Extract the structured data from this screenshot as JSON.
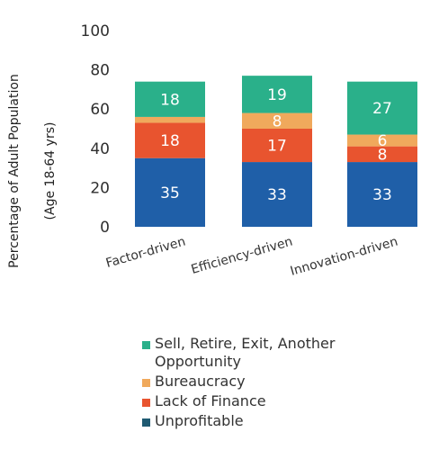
{
  "chart_data": {
    "type": "bar",
    "stacked": true,
    "title": "",
    "xlabel": "",
    "ylabel": [
      "Percentage of Adult Population",
      "(Age 18-64 yrs)"
    ],
    "ylim": [
      0,
      100
    ],
    "yticks": [
      0,
      20,
      40,
      60,
      80,
      100
    ],
    "grid": false,
    "legend_position": "bottom",
    "categories": [
      "Factor-driven",
      "Efficiency-driven",
      "Innovation-driven"
    ],
    "series": [
      {
        "name": "Unprofitable",
        "color": "#1f5fa8",
        "values": [
          35,
          33,
          33
        ],
        "labels": [
          "35",
          "33",
          "33"
        ]
      },
      {
        "name": "Lack of Finance",
        "color": "#e8542f",
        "values": [
          18,
          17,
          8
        ],
        "labels": [
          "18",
          "17",
          "8"
        ]
      },
      {
        "name": "Bureaucracy",
        "color": "#f0a95c",
        "values": [
          3,
          8,
          6
        ],
        "labels": [
          "",
          "8",
          "6"
        ]
      },
      {
        "name": "Sell, Retire, Exit, Another Opportunity",
        "color": "#2ab08a",
        "values": [
          18,
          19,
          27
        ],
        "labels": [
          "18",
          "19",
          "27"
        ]
      }
    ],
    "legend": [
      {
        "label": "Sell, Retire, Exit, Another Opportunity",
        "color": "#2ab08a",
        "icon": "square-icon"
      },
      {
        "label": "Bureaucracy",
        "color": "#f0a95c",
        "icon": "square-icon"
      },
      {
        "label": "Lack of Finance",
        "color": "#e8542f",
        "icon": "square-icon"
      },
      {
        "label": "Unprofitable",
        "color": "#1f5a72",
        "icon": "square-icon"
      }
    ]
  }
}
